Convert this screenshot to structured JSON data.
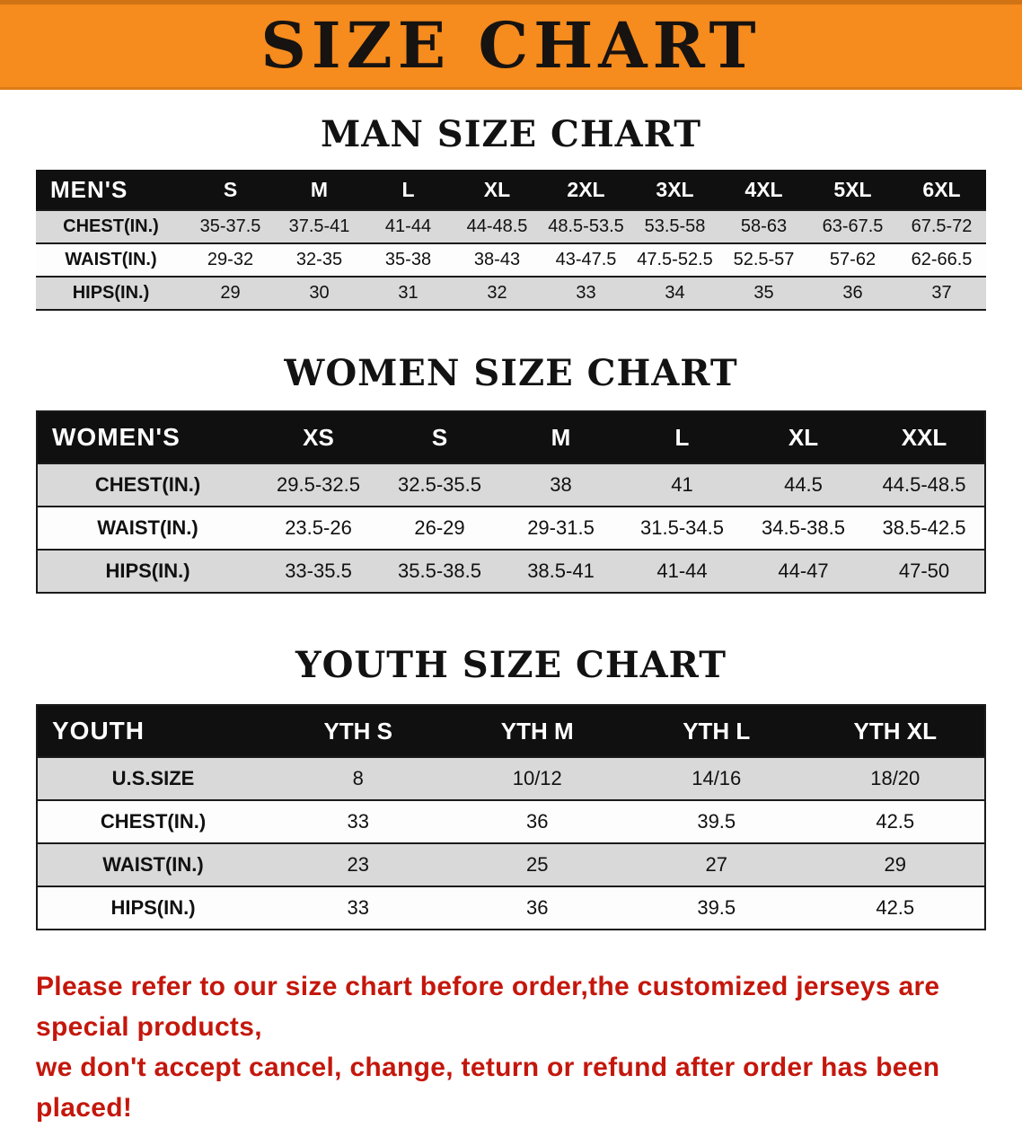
{
  "banner": {
    "title": "SIZE CHART"
  },
  "sections": [
    {
      "id": "men",
      "heading": "MAN SIZE CHART",
      "table": {
        "header": [
          "MEN'S",
          "S",
          "M",
          "L",
          "XL",
          "2XL",
          "3XL",
          "4XL",
          "5XL",
          "6XL"
        ],
        "rows": [
          [
            "CHEST(IN.)",
            "35-37.5",
            "37.5-41",
            "41-44",
            "44-48.5",
            "48.5-53.5",
            "53.5-58",
            "58-63",
            "63-67.5",
            "67.5-72"
          ],
          [
            "WAIST(IN.)",
            "29-32",
            "32-35",
            "35-38",
            "38-43",
            "43-47.5",
            "47.5-52.5",
            "52.5-57",
            "57-62",
            "62-66.5"
          ],
          [
            "HIPS(IN.)",
            "29",
            "30",
            "31",
            "32",
            "33",
            "34",
            "35",
            "36",
            "37"
          ]
        ]
      }
    },
    {
      "id": "women",
      "heading": "WOMEN SIZE CHART",
      "table": {
        "header": [
          "WOMEN'S",
          "XS",
          "S",
          "M",
          "L",
          "XL",
          "XXL"
        ],
        "rows": [
          [
            "CHEST(IN.)",
            "29.5-32.5",
            "32.5-35.5",
            "38",
            "41",
            "44.5",
            "44.5-48.5"
          ],
          [
            "WAIST(IN.)",
            "23.5-26",
            "26-29",
            "29-31.5",
            "31.5-34.5",
            "34.5-38.5",
            "38.5-42.5"
          ],
          [
            "HIPS(IN.)",
            "33-35.5",
            "35.5-38.5",
            "38.5-41",
            "41-44",
            "44-47",
            "47-50"
          ]
        ]
      }
    },
    {
      "id": "youth",
      "heading": "YOUTH SIZE CHART",
      "table": {
        "header": [
          "YOUTH",
          "YTH S",
          "YTH M",
          "YTH L",
          "YTH XL"
        ],
        "rows": [
          [
            "U.S.SIZE",
            "8",
            "10/12",
            "14/16",
            "18/20"
          ],
          [
            "CHEST(IN.)",
            "33",
            "36",
            "39.5",
            "42.5"
          ],
          [
            "WAIST(IN.)",
            "23",
            "25",
            "27",
            "29"
          ],
          [
            "HIPS(IN.)",
            "33",
            "36",
            "39.5",
            "42.5"
          ]
        ]
      }
    }
  ],
  "footer": {
    "line1": "Please refer to our size chart before order,the customized jerseys are special products,",
    "line2": "we don't accept cancel, change, teturn or refund after order has been placed!"
  },
  "colors": {
    "banner_orange": "#f68b1e",
    "table_header_black": "#101010",
    "row_stripe_gray": "#d9d9d9",
    "notice_red": "#c4170c"
  }
}
